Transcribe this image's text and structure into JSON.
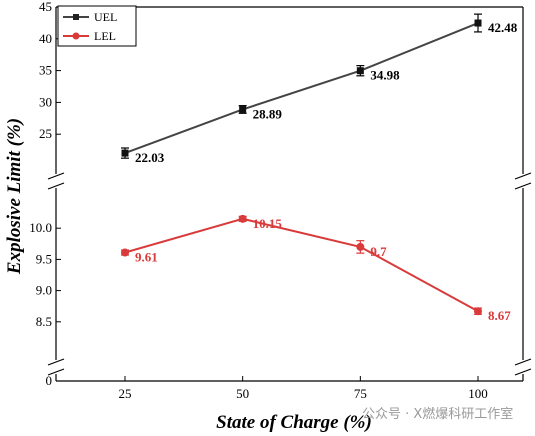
{
  "chart_data": {
    "type": "line",
    "xlabel": "State of Charge (%)",
    "ylabel": "Explosive Limit (%)",
    "x": [
      25,
      50,
      75,
      100
    ],
    "x_ticks": [
      "25",
      "50",
      "75",
      "100"
    ],
    "xlim": [
      0,
      110
    ],
    "broken_y_axis": true,
    "y_segments": [
      {
        "range": [
          20,
          45
        ],
        "ticks": [
          "25",
          "30",
          "35",
          "40",
          "45"
        ]
      },
      {
        "range": [
          8.0,
          10.5
        ],
        "ticks": [
          "8.5",
          "9.0",
          "9.5",
          "10.0"
        ]
      },
      {
        "range": [
          0,
          0
        ],
        "ticks": [
          "0"
        ]
      }
    ],
    "legend_position": "top-left",
    "grid": false,
    "series": [
      {
        "name": "UEL",
        "color": "#444444",
        "marker": "square",
        "segment": 0,
        "values": [
          22.03,
          28.89,
          34.98,
          42.48
        ],
        "errors": [
          0.8,
          0.6,
          0.8,
          1.4
        ],
        "labels": [
          "22.03",
          "28.89",
          "34.98",
          "42.48"
        ]
      },
      {
        "name": "LEL",
        "color": "#d93a3a",
        "marker": "circle",
        "segment": 1,
        "values": [
          9.61,
          10.15,
          9.7,
          8.67
        ],
        "errors": [
          0.04,
          0.04,
          0.1,
          0.05
        ],
        "labels": [
          "9.61",
          "10.15",
          "9.7",
          "8.67"
        ]
      }
    ]
  },
  "watermark": "公众号 · X燃爆科研工作室"
}
